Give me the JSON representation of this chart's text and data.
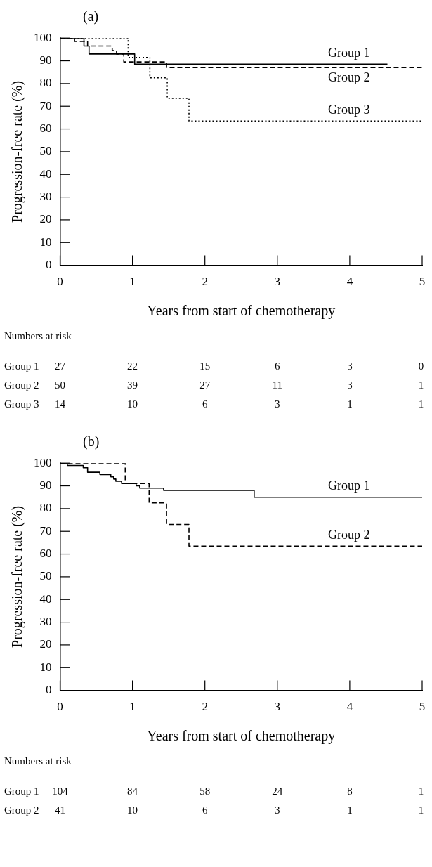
{
  "chart_data": [
    {
      "type": "step",
      "title": "(a)",
      "xlabel": "Years from start of chemotherapy",
      "ylabel": "Progression-free rate (%)",
      "xlim": [
        0,
        5
      ],
      "xticks": [
        0,
        1,
        2,
        3,
        4,
        5
      ],
      "ylim": [
        0,
        100
      ],
      "yticks": [
        0,
        10,
        20,
        30,
        40,
        50,
        60,
        70,
        80,
        90,
        100
      ],
      "legend": false,
      "marker": "none",
      "series": [
        {
          "name": "Group 1",
          "color": "#000000",
          "line_style": "solid",
          "x": [
            0,
            0.33,
            0.4,
            1.03,
            4.52
          ],
          "values": [
            100,
            96.5,
            93,
            88.5,
            88.5
          ]
        },
        {
          "name": "Group 2",
          "color": "#000000",
          "line_style": "dashed",
          "x": [
            0,
            0.2,
            0.38,
            0.72,
            0.78,
            0.88,
            1.47,
            5
          ],
          "values": [
            100,
            98.5,
            96.5,
            94.5,
            93,
            89.5,
            87,
            87
          ]
        },
        {
          "name": "Group 3",
          "color": "#000000",
          "line_style": "dotted",
          "x": [
            0,
            0.94,
            1.24,
            1.48,
            1.78,
            5
          ],
          "values": [
            100,
            91.5,
            82.5,
            73.5,
            63.5,
            63.5
          ]
        }
      ],
      "annotations": [
        "Numbers at risk",
        "Group 1\t27\t22\t15\t6\t3\t0",
        "Group 2\t50\t39\t27\t11\t3\t1",
        "Group 3\t14\t10\t6\t3\t1\t1"
      ]
    },
    {
      "type": "step",
      "title": "(b)",
      "xlabel": "Years from start of chemotherapy",
      "ylabel": "Progression-free rate (%)",
      "xlim": [
        0,
        5
      ],
      "xticks": [
        0,
        1,
        2,
        3,
        4,
        5
      ],
      "ylim": [
        0,
        100
      ],
      "yticks": [
        0,
        10,
        20,
        30,
        40,
        50,
        60,
        70,
        80,
        90,
        100
      ],
      "legend": false,
      "marker": "none",
      "series": [
        {
          "name": "Group 1",
          "color": "#000000",
          "line_style": "solid",
          "x": [
            0,
            0.1,
            0.32,
            0.38,
            0.55,
            0.7,
            0.74,
            0.77,
            0.85,
            1.05,
            1.1,
            1.43,
            2.68,
            5
          ],
          "values": [
            100,
            99,
            98,
            96,
            95,
            94,
            93,
            92,
            91,
            90,
            89,
            88,
            85,
            85
          ]
        },
        {
          "name": "Group 2",
          "color": "#000000",
          "line_style": "dashed",
          "x": [
            0,
            0.9,
            1.23,
            1.47,
            1.78,
            5
          ],
          "values": [
            100,
            91,
            82.5,
            73,
            63.5,
            63.5
          ]
        }
      ],
      "annotations": [
        "Numbers at risk",
        "Group 1\t104\t84\t58\t24\t8\t1",
        "Group 2\t41\t10\t6\t3\t1\t1"
      ]
    }
  ]
}
